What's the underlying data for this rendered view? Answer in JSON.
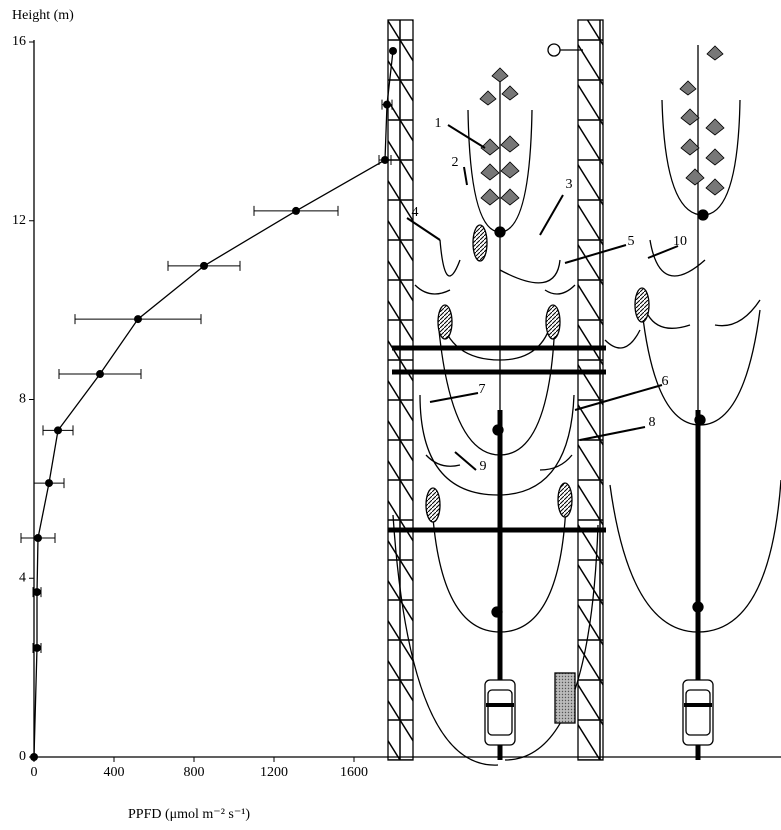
{
  "chart_data": {
    "type": "line",
    "x_label": "PPFD (μmol m⁻² s⁻¹)",
    "y_label": "Height (m)",
    "x": [
      0,
      15,
      15,
      20,
      75,
      120,
      330,
      520,
      850,
      1310,
      1755,
      1765,
      1795
    ],
    "values": [
      0,
      2.44,
      3.69,
      4.9,
      6.13,
      7.31,
      8.57,
      9.8,
      10.99,
      12.22,
      13.36,
      14.6,
      15.8
    ],
    "xerr": [
      null,
      20,
      20,
      85,
      75,
      75,
      205,
      315,
      180,
      210,
      30,
      25,
      null
    ],
    "color": "#000000",
    "xlim": [
      0,
      3700
    ],
    "ylim": [
      0,
      16
    ],
    "xticks": [
      0,
      400,
      800,
      1200,
      1600
    ],
    "yticks": [
      0,
      4,
      8,
      12,
      16
    ],
    "annotations": [
      "1",
      "2",
      "3",
      "4",
      "5",
      "6",
      "7",
      "8",
      "9",
      "10"
    ]
  }
}
